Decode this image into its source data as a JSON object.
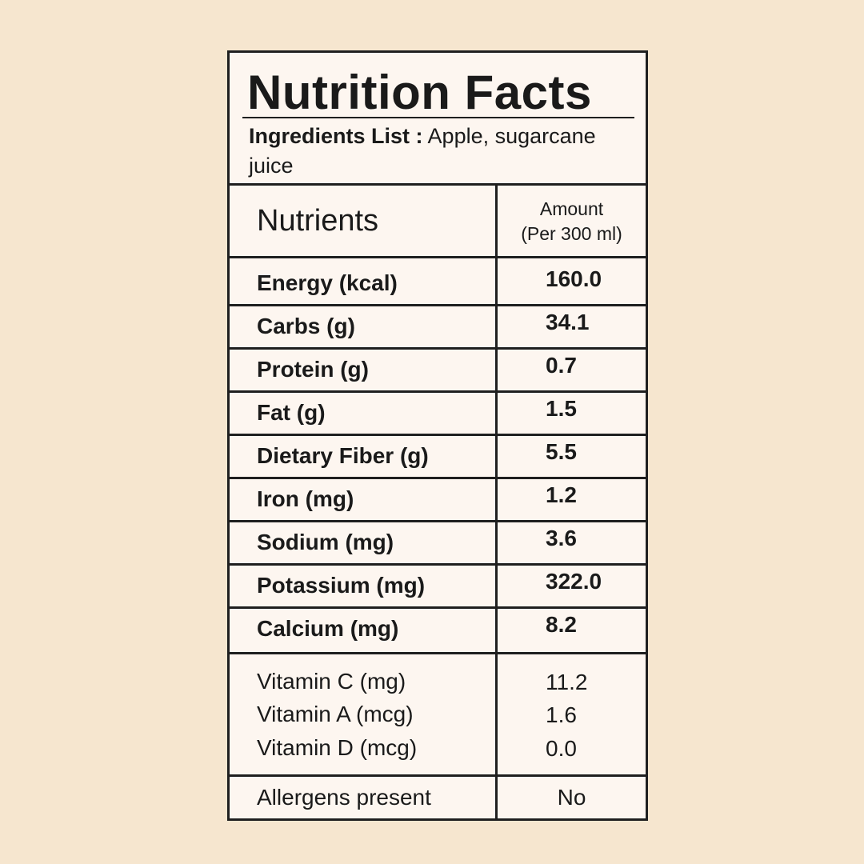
{
  "title": "Nutrition Facts",
  "ingredients": {
    "label": "Ingredients List :",
    "value": "Apple, sugarcane juice"
  },
  "table_header": {
    "nutrients": "Nutrients",
    "amount_line1": "Amount",
    "amount_line2": "(Per 300 ml)"
  },
  "rows": [
    {
      "name": "Energy (kcal)",
      "value": "160.0"
    },
    {
      "name": "Carbs (g)",
      "value": "34.1"
    },
    {
      "name": "Protein (g)",
      "value": "0.7"
    },
    {
      "name": "Fat (g)",
      "value": "1.5"
    },
    {
      "name": "Dietary Fiber (g)",
      "value": "5.5"
    },
    {
      "name": "Iron (mg)",
      "value": "1.2"
    },
    {
      "name": "Sodium (mg)",
      "value": "3.6"
    },
    {
      "name": "Potassium (mg)",
      "value": "322.0"
    },
    {
      "name": "Calcium (mg)",
      "value": "8.2"
    }
  ],
  "vitamins": [
    {
      "name": "Vitamin C (mg)",
      "value": "11.2"
    },
    {
      "name": "Vitamin A (mcg)",
      "value": "1.6"
    },
    {
      "name": "Vitamin D (mcg)",
      "value": "0.0"
    }
  ],
  "allergens": {
    "label": "Allergens present",
    "value": "No"
  },
  "colors": {
    "background": "#f6e6cf",
    "panel": "#fdf6f0",
    "ink": "#1a1a1a"
  }
}
